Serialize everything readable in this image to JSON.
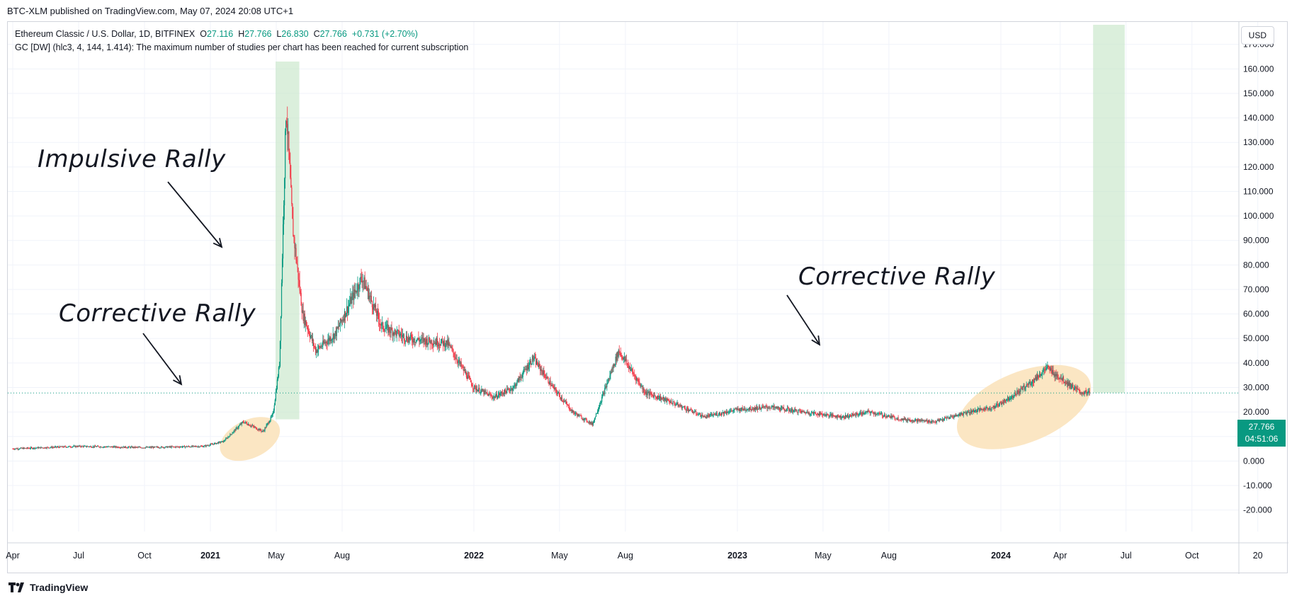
{
  "header": {
    "published": "BTC-XLM published on TradingView.com, May 07, 2024 20:08 UTC+1"
  },
  "legend": {
    "symbol": "Ethereum Classic / U.S. Dollar, 1D, BITFINEX",
    "o_label": "O",
    "o": "27.116",
    "h_label": "H",
    "h": "27.766",
    "l_label": "L",
    "l": "26.830",
    "c_label": "C",
    "c": "27.766",
    "change": "+0.731 (+2.70%)",
    "study": "GC [DW] (hlc3, 4, 144, 1.414): The maximum number of studies per chart has been reached for current subscription"
  },
  "currency": "USD",
  "price_tag": {
    "price": "27.766",
    "countdown": "04:51:06"
  },
  "annotations": {
    "impulsive": "Impulsive Rally",
    "corrective_left": "Corrective Rally",
    "corrective_right": "Corrective Rally"
  },
  "footer": {
    "brand": "TradingView"
  },
  "colors": {
    "up": "#089981",
    "down": "#f23645",
    "highlight": "#c8e6c9",
    "ellipse": "#fbe3bd",
    "grid": "#f0f3fa"
  },
  "chart_data": {
    "type": "candlestick",
    "title": "Ethereum Classic / U.S. Dollar, 1D, BITFINEX",
    "ylim": [
      -23,
      178
    ],
    "y_ticks": [
      "170.000",
      "160.000",
      "150.000",
      "140.000",
      "130.000",
      "120.000",
      "110.000",
      "100.000",
      "90.000",
      "80.000",
      "70.000",
      "60.000",
      "50.000",
      "40.000",
      "30.000",
      "20.000",
      "10.000",
      "0.000",
      "-10.000",
      "-20.000"
    ],
    "x_ticks": [
      {
        "t": 0,
        "label": "Apr"
      },
      {
        "t": 1.0,
        "label": "Jul"
      },
      {
        "t": 2.0,
        "label": "Oct"
      },
      {
        "t": 3.0,
        "label": "2021",
        "bold": true
      },
      {
        "t": 4.0,
        "label": "May"
      },
      {
        "t": 5.0,
        "label": "Aug"
      },
      {
        "t": 7.0,
        "label": "2022",
        "bold": true
      },
      {
        "t": 8.3,
        "label": "May"
      },
      {
        "t": 9.3,
        "label": "Aug"
      },
      {
        "t": 11.0,
        "label": "2023",
        "bold": true
      },
      {
        "t": 12.3,
        "label": "May"
      },
      {
        "t": 13.3,
        "label": "Aug"
      },
      {
        "t": 15.0,
        "label": "2024",
        "bold": true
      },
      {
        "t": 15.9,
        "label": "Apr"
      },
      {
        "t": 16.9,
        "label": "Jul"
      },
      {
        "t": 17.9,
        "label": "Oct"
      },
      {
        "t": 18.9,
        "label": "20"
      }
    ],
    "price_path": [
      [
        0,
        5
      ],
      [
        1,
        6
      ],
      [
        2,
        5.5
      ],
      [
        2.9,
        6
      ],
      [
        3.2,
        8
      ],
      [
        3.5,
        16
      ],
      [
        3.8,
        12
      ],
      [
        3.95,
        19
      ],
      [
        4.05,
        40
      ],
      [
        4.15,
        145
      ],
      [
        4.25,
        95
      ],
      [
        4.4,
        60
      ],
      [
        4.6,
        45
      ],
      [
        4.9,
        52
      ],
      [
        5.3,
        75
      ],
      [
        5.6,
        55
      ],
      [
        6.0,
        50
      ],
      [
        6.6,
        48
      ],
      [
        7.0,
        30
      ],
      [
        7.3,
        26
      ],
      [
        7.6,
        30
      ],
      [
        7.9,
        42
      ],
      [
        8.2,
        30
      ],
      [
        8.5,
        20
      ],
      [
        8.8,
        15
      ],
      [
        9.2,
        45
      ],
      [
        9.6,
        28
      ],
      [
        10.0,
        24
      ],
      [
        10.5,
        18
      ],
      [
        11.0,
        21
      ],
      [
        11.5,
        22
      ],
      [
        12.0,
        20
      ],
      [
        12.6,
        18
      ],
      [
        13.0,
        20
      ],
      [
        13.5,
        17
      ],
      [
        14.0,
        16
      ],
      [
        14.5,
        20
      ],
      [
        14.9,
        22
      ],
      [
        15.2,
        27
      ],
      [
        15.5,
        33
      ],
      [
        15.7,
        38
      ],
      [
        15.95,
        33
      ],
      [
        16.2,
        28
      ],
      [
        16.35,
        27.766
      ]
    ],
    "last_price": 27.766,
    "highlights": [
      {
        "t0": 3.99,
        "t1": 4.35,
        "y0": 17,
        "y1": 163
      },
      {
        "t0": 16.4,
        "t1": 16.88,
        "y0": 27.766,
        "y1": 178
      }
    ],
    "ellipses": [
      {
        "t": 3.6,
        "y": 9,
        "label": "Corrective Rally"
      },
      {
        "t": 15.35,
        "y": 22,
        "label": "Corrective Rally"
      }
    ]
  }
}
